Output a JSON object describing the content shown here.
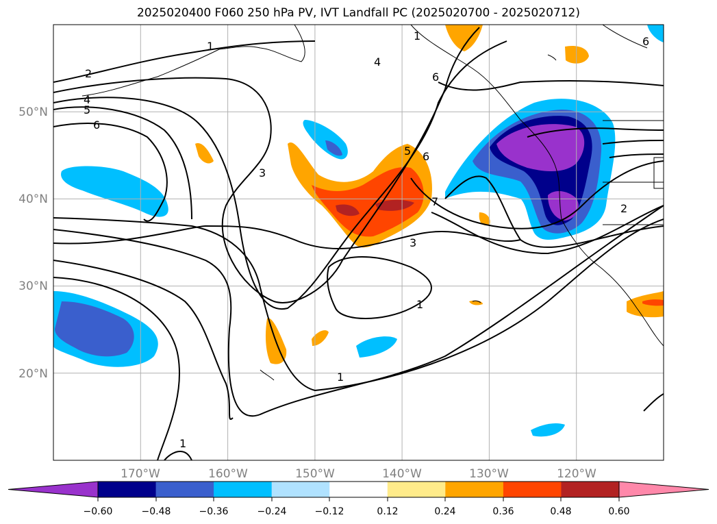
{
  "title": "2025020400 F060 250 hPa PV, IVT Landfall PC (2025020700 - 2025020712)",
  "map": {
    "lon_range": [
      -180,
      -110
    ],
    "lat_range": [
      10,
      60
    ],
    "lat_ticks": [
      {
        "value": 50,
        "label": "50°N"
      },
      {
        "value": 40,
        "label": "40°N"
      },
      {
        "value": 30,
        "label": "30°N"
      },
      {
        "value": 20,
        "label": "20°N"
      }
    ],
    "lon_ticks": [
      {
        "value": -170,
        "label": "170°W"
      },
      {
        "value": -160,
        "label": "160°W"
      },
      {
        "value": -150,
        "label": "150°W"
      },
      {
        "value": -140,
        "label": "140°W"
      },
      {
        "value": -130,
        "label": "130°W"
      },
      {
        "value": -120,
        "label": "120°W"
      }
    ],
    "gridlines": true,
    "contour_labels": [
      "1",
      "2",
      "4",
      "5",
      "6",
      "1",
      "4",
      "6",
      "3",
      "5",
      "6",
      "7",
      "3",
      "1",
      "1",
      "2",
      "6",
      "1"
    ]
  },
  "colorbar": {
    "labels": [
      "−0.60",
      "−0.48",
      "−0.36",
      "−0.24",
      "−0.12",
      "0.12",
      "0.24",
      "0.36",
      "0.48",
      "0.60"
    ],
    "colors": [
      "#9932cc",
      "#00008b",
      "#3a5fcd",
      "#00bfff",
      "#b0e2ff",
      "#ffffff",
      "#ffeb8a",
      "#ffa500",
      "#ff4500",
      "#b22222",
      "#ff88aa"
    ],
    "extend": "both"
  }
}
